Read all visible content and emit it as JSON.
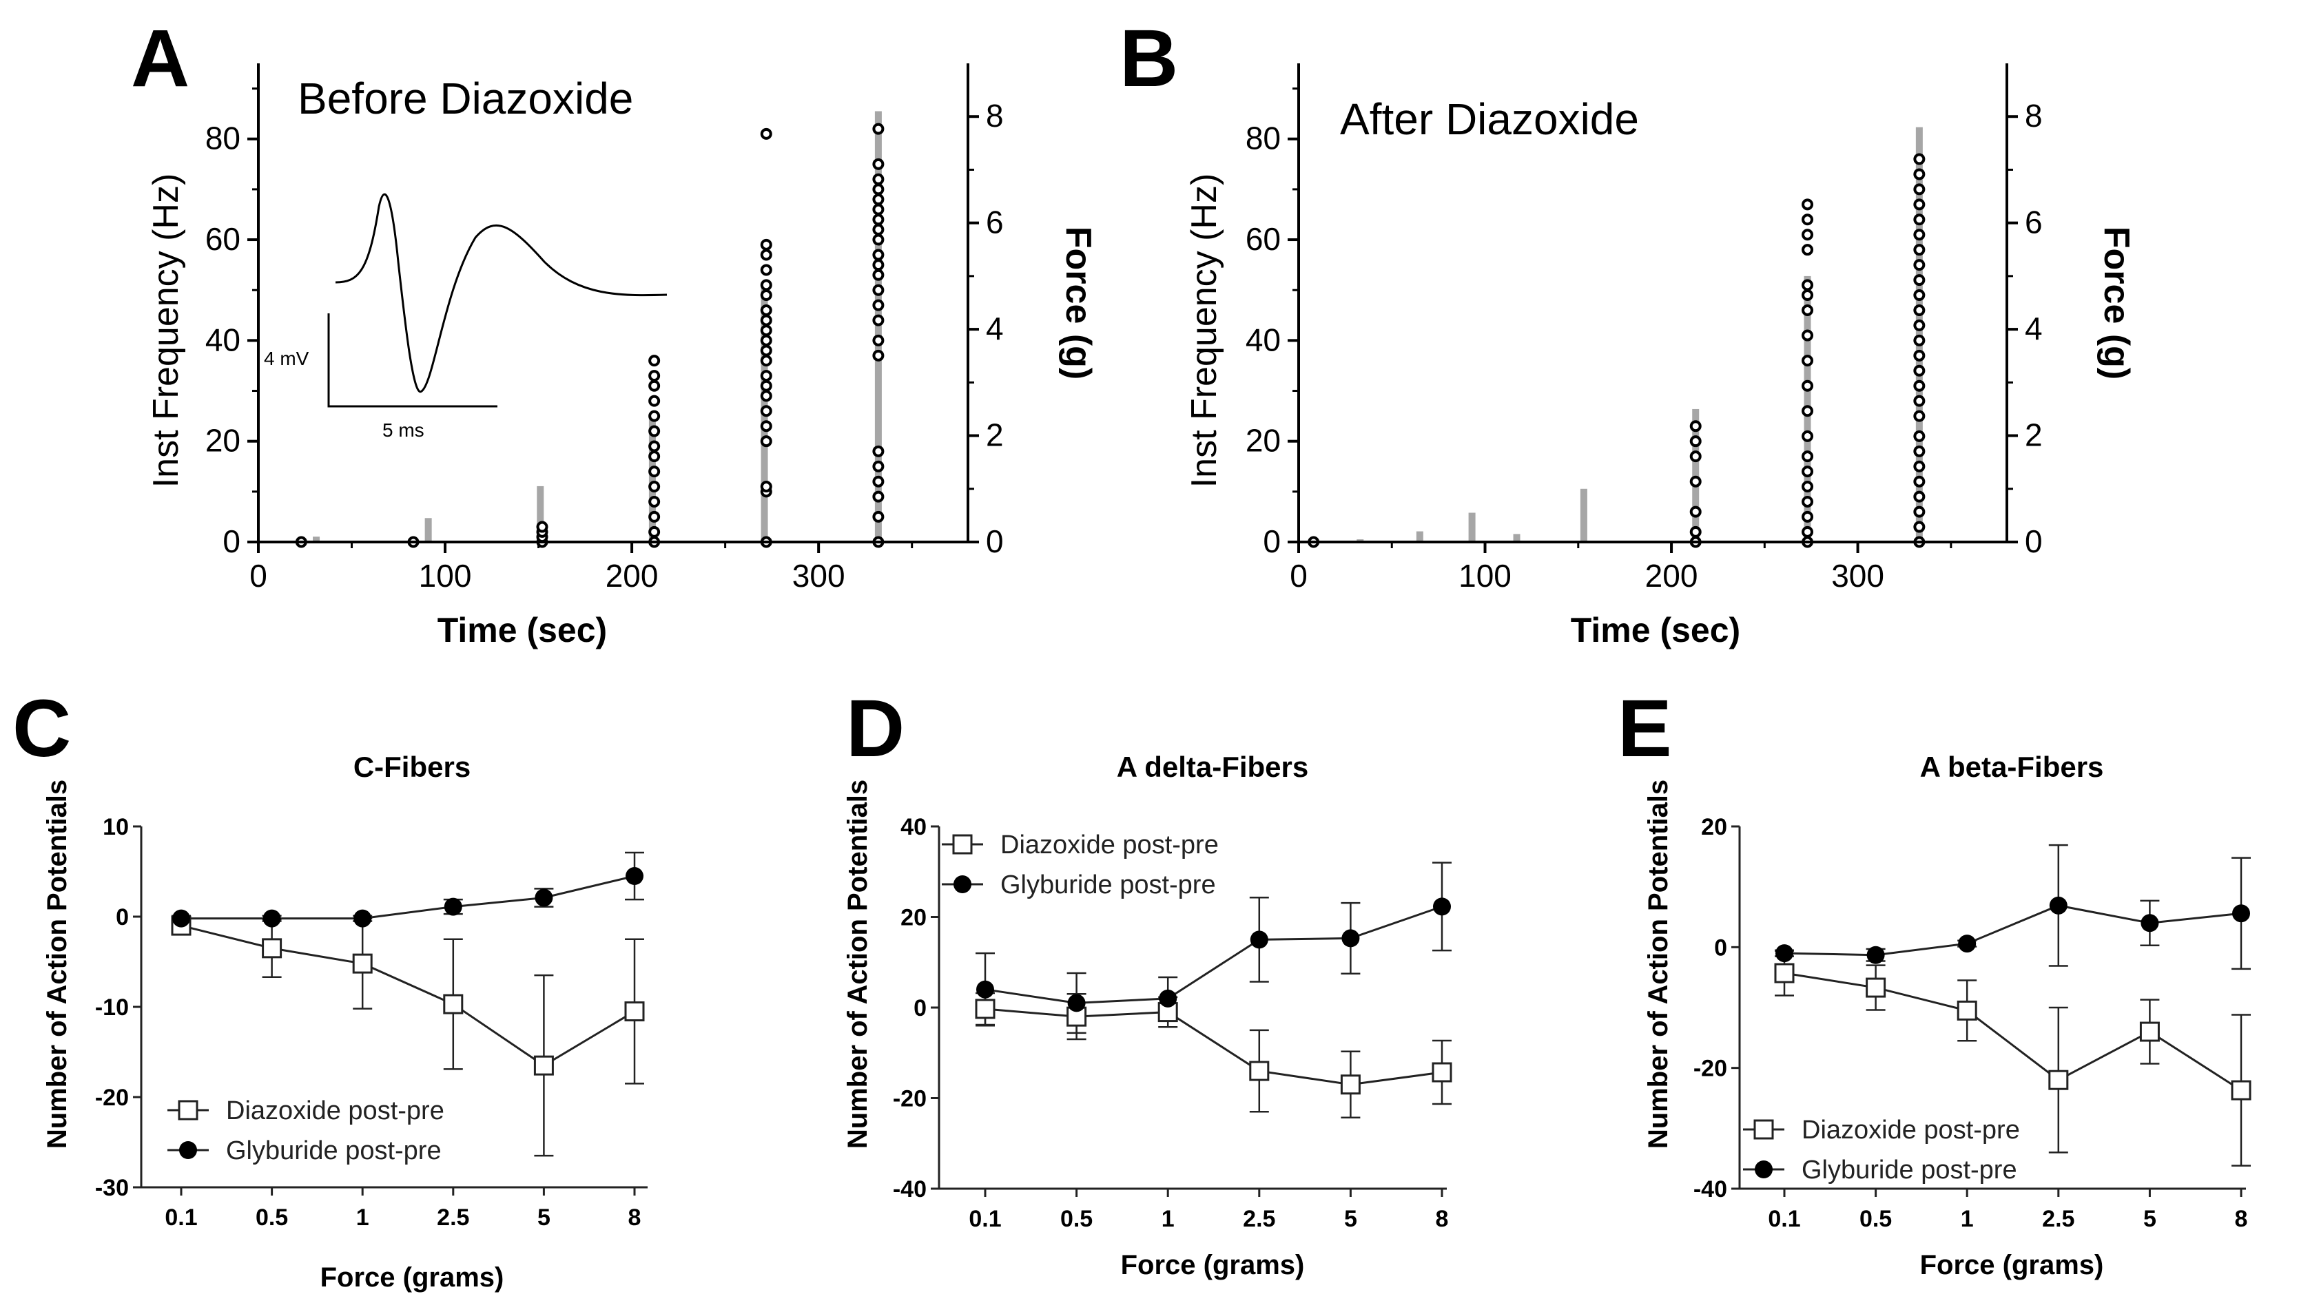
{
  "chart_data": [
    {
      "id": "A",
      "type": "scatter",
      "panel_letter": "A",
      "annotation": "Before Diazoxide",
      "xlabel": "Time (sec)",
      "ylabel": "Inst Frequency  (Hz)",
      "y2label": "Force  (g)",
      "xlim": [
        0,
        380
      ],
      "ylim": [
        0,
        95
      ],
      "y2lim": [
        0,
        9
      ],
      "xticks": [
        "0",
        "100",
        "200",
        "300"
      ],
      "yticks": [
        "0",
        "20",
        "40",
        "60",
        "80"
      ],
      "y2ticks": [
        "0",
        "2",
        "4",
        "6",
        "8"
      ],
      "inset": {
        "scale_v": "4 mV",
        "scale_t": "5 ms"
      },
      "force_bars": [
        {
          "x": 31,
          "force": 0.1
        },
        {
          "x": 91,
          "force": 0.45
        },
        {
          "x": 151,
          "force": 1.05
        },
        {
          "x": 211,
          "force": 2.4
        },
        {
          "x": 271,
          "force": 4.8
        },
        {
          "x": 332,
          "force": 8.1
        }
      ],
      "spikes": [
        {
          "t": 23,
          "freq": [
            0
          ]
        },
        {
          "t": 83,
          "freq": [
            0
          ]
        },
        {
          "t": 152,
          "freq": [
            0,
            1,
            2,
            3
          ]
        },
        {
          "t": 212,
          "freq": [
            0,
            2,
            5,
            8,
            11,
            14,
            17,
            19,
            22,
            25,
            28,
            31,
            33,
            36
          ]
        },
        {
          "t": 272,
          "freq": [
            0,
            10,
            11,
            20,
            23,
            26,
            29,
            31,
            33,
            36,
            38,
            40,
            42,
            44,
            46,
            49,
            51,
            54,
            57,
            59,
            81
          ]
        },
        {
          "t": 332,
          "freq": [
            0,
            5,
            9,
            12,
            15,
            18,
            37,
            40,
            44,
            47,
            50,
            53,
            55,
            57,
            60,
            62,
            64,
            66,
            68,
            70,
            72,
            75,
            82
          ]
        }
      ]
    },
    {
      "id": "B",
      "type": "scatter",
      "panel_letter": "B",
      "annotation": "After Diazoxide",
      "xlabel": "Time (sec)",
      "ylabel": "Inst Frequency  (Hz)",
      "y2label": "Force  (g)",
      "xlim": [
        0,
        380
      ],
      "ylim": [
        0,
        95
      ],
      "y2lim": [
        0,
        9
      ],
      "xticks": [
        "0",
        "100",
        "200",
        "300"
      ],
      "yticks": [
        "0",
        "20",
        "40",
        "60",
        "80"
      ],
      "y2ticks": [
        "0",
        "2",
        "4",
        "6",
        "8"
      ],
      "force_bars": [
        {
          "x": 33,
          "force": 0.05
        },
        {
          "x": 65,
          "force": 0.2
        },
        {
          "x": 93,
          "force": 0.55
        },
        {
          "x": 117,
          "force": 0.15
        },
        {
          "x": 153,
          "force": 1.0
        },
        {
          "x": 213,
          "force": 2.5
        },
        {
          "x": 273,
          "force": 5.0
        },
        {
          "x": 333,
          "force": 7.8
        }
      ],
      "spikes": [
        {
          "t": 8,
          "freq": [
            0
          ]
        },
        {
          "t": 213,
          "freq": [
            0,
            2,
            6,
            12,
            17,
            20,
            23
          ]
        },
        {
          "t": 273,
          "freq": [
            0,
            2,
            5,
            8,
            11,
            14,
            17,
            21,
            26,
            31,
            36,
            41,
            46,
            49,
            51,
            58,
            61,
            64,
            67
          ]
        },
        {
          "t": 333,
          "freq": [
            0,
            3,
            6,
            9,
            12,
            15,
            18,
            21,
            25,
            28,
            31,
            34,
            37,
            40,
            43,
            46,
            49,
            52,
            55,
            58,
            61,
            64,
            67,
            70,
            73,
            76
          ]
        }
      ]
    },
    {
      "id": "C",
      "type": "line",
      "panel_letter": "C",
      "title": "C-Fibers",
      "xlabel": "Force (grams)",
      "ylabel": "Number of Action  Potentials",
      "categories": [
        "0.1",
        "0.5",
        "1",
        "2.5",
        "5",
        "8"
      ],
      "ylim": [
        -30,
        10
      ],
      "yticks": [
        "10",
        "0",
        "-10",
        "-20",
        "-30"
      ],
      "legend_position": "bottom-left",
      "series": [
        {
          "name": "Diazoxide post-pre",
          "marker": "open-square",
          "values": [
            -1,
            -3.5,
            -5.2,
            -9.7,
            -16.5,
            -10.5
          ],
          "err": [
            0.5,
            3.2,
            5.0,
            7.2,
            10.0,
            8.0
          ]
        },
        {
          "name": "Glyburide post-pre",
          "marker": "filled-circle",
          "values": [
            -0.2,
            -0.2,
            -0.2,
            1.1,
            2.1,
            4.5
          ],
          "err": [
            0.3,
            0.3,
            0.3,
            0.8,
            1.0,
            2.6
          ]
        }
      ]
    },
    {
      "id": "D",
      "type": "line",
      "panel_letter": "D",
      "title": "A delta-Fibers",
      "xlabel": "Force (grams)",
      "ylabel": "Number of Action  Potentials",
      "categories": [
        "0.1",
        "0.5",
        "1",
        "2.5",
        "5",
        "8"
      ],
      "ylim": [
        -40,
        40
      ],
      "yticks": [
        "40",
        "20",
        "0",
        "-20",
        "-40"
      ],
      "legend_position": "top-left",
      "series": [
        {
          "name": "Diazoxide post-pre",
          "marker": "open-square",
          "values": [
            -0.3,
            -2,
            -1,
            -14,
            -17,
            -14.3
          ],
          "err": [
            3.5,
            5.0,
            3.3,
            9.0,
            7.3,
            7.0
          ]
        },
        {
          "name": "Glyburide post-pre",
          "marker": "filled-circle",
          "values": [
            4,
            1,
            2,
            15,
            15.3,
            22.3
          ],
          "err": [
            8,
            6.6,
            4.7,
            9.3,
            7.8,
            9.7
          ]
        }
      ]
    },
    {
      "id": "E",
      "type": "line",
      "panel_letter": "E",
      "title": "A  beta-Fibers",
      "xlabel": "Force (grams)",
      "ylabel": "Number of Action  Potentials",
      "categories": [
        "0.1",
        "0.5",
        "1",
        "2.5",
        "5",
        "8"
      ],
      "ylim": [
        -40,
        20
      ],
      "yticks": [
        "20",
        "0",
        "-20",
        "-40"
      ],
      "legend_position": "bottom-left",
      "series": [
        {
          "name": "Diazoxide post-pre",
          "marker": "open-square",
          "values": [
            -4.3,
            -6.7,
            -10.5,
            -22,
            -14,
            -23.7
          ],
          "err": [
            3.7,
            3.7,
            5.0,
            12,
            5.3,
            12.5
          ]
        },
        {
          "name": "Glyburide post-pre",
          "marker": "filled-circle",
          "values": [
            -1,
            -1.3,
            0.6,
            6.9,
            4,
            5.6
          ],
          "err": [
            0.5,
            1.0,
            0.5,
            10,
            3.7,
            9.2
          ]
        }
      ]
    }
  ]
}
